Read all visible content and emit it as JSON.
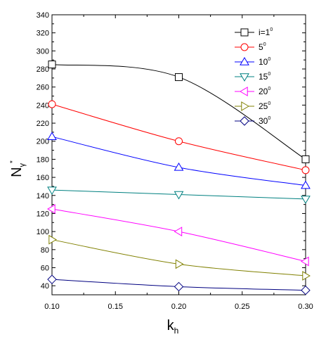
{
  "chart_data": {
    "type": "line",
    "xlabel": "k",
    "xlabel_sub": "h",
    "ylabel": "N",
    "ylabel_sub": "γ",
    "ylabel_sup": "*",
    "x": [
      0.1,
      0.2,
      0.3
    ],
    "xlim": [
      0.1,
      0.3
    ],
    "ylim": [
      30,
      340
    ],
    "x_ticks": [
      "0.10",
      "0.15",
      "0.20",
      "0.25",
      "0.30"
    ],
    "x_tick_values": [
      0.1,
      0.15,
      0.2,
      0.25,
      0.3
    ],
    "y_ticks": [
      "40",
      "60",
      "80",
      "100",
      "120",
      "140",
      "160",
      "180",
      "200",
      "220",
      "240",
      "260",
      "280",
      "300",
      "320",
      "340"
    ],
    "y_tick_values": [
      40,
      60,
      80,
      100,
      120,
      140,
      160,
      180,
      200,
      220,
      240,
      260,
      280,
      300,
      320,
      340
    ],
    "grid": false,
    "legend_position": "top-right",
    "series": [
      {
        "name": "i=1",
        "sup": "0",
        "marker": "square",
        "color": "#000000",
        "values": [
          285,
          271,
          180
        ]
      },
      {
        "name": "5",
        "sup": "0",
        "marker": "circle",
        "color": "#ff0000",
        "values": [
          241,
          200,
          168
        ]
      },
      {
        "name": "10",
        "sup": "0",
        "marker": "triangle-up",
        "color": "#0000ff",
        "values": [
          205,
          171,
          151
        ]
      },
      {
        "name": "15",
        "sup": "0",
        "marker": "triangle-down",
        "color": "#008080",
        "values": [
          146,
          141,
          136
        ]
      },
      {
        "name": "20",
        "sup": "0",
        "marker": "triangle-left",
        "color": "#ff00ff",
        "values": [
          125,
          100,
          67
        ]
      },
      {
        "name": "25",
        "sup": "0",
        "marker": "triangle-right",
        "color": "#808000",
        "values": [
          91,
          64,
          51
        ]
      },
      {
        "name": "30",
        "sup": "0",
        "marker": "diamond",
        "color": "#000080",
        "values": [
          47,
          39,
          35
        ]
      }
    ]
  }
}
